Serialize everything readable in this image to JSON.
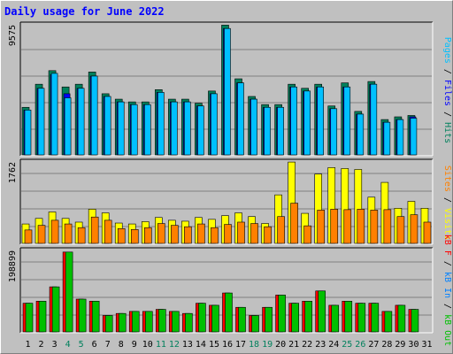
{
  "title": "Daily usage for June 2022",
  "colors": {
    "hits": "#00805c",
    "files": "#0000ff",
    "pages": "#00c0ff",
    "visits": "#ffff00",
    "sites": "#ff8000",
    "kb_in": "#0080ff",
    "kb_out": "#00c000",
    "kb_f": "#ff0000",
    "weekend_label": "#00805c",
    "weekday_label": "#000000"
  },
  "legend": {
    "top": [
      {
        "key": "pages",
        "text": "Pages"
      },
      {
        "key": "sep",
        "text": " / "
      },
      {
        "key": "files",
        "text": "Files"
      },
      {
        "key": "sep",
        "text": " / "
      },
      {
        "key": "hits",
        "text": "Hits"
      }
    ],
    "middle": [
      {
        "key": "sites",
        "text": "Sites"
      },
      {
        "key": "sep",
        "text": " / "
      },
      {
        "key": "visits",
        "text": "Visits"
      }
    ],
    "bottom": [
      {
        "key": "kb_f",
        "text": "kB F"
      },
      {
        "key": "sep",
        "text": " / "
      },
      {
        "key": "kb_in",
        "text": "kB In"
      },
      {
        "key": "sep",
        "text": " / "
      },
      {
        "key": "kb_out",
        "text": "kB Out"
      }
    ]
  },
  "chart_data": [
    {
      "type": "bar",
      "panel": "top",
      "ymax_label": "9575",
      "ylim": [
        0,
        9575
      ],
      "grid": true,
      "categories": [
        "1",
        "2",
        "3",
        "4",
        "5",
        "6",
        "7",
        "8",
        "9",
        "10",
        "11",
        "12",
        "13",
        "14",
        "15",
        "16",
        "17",
        "18",
        "19",
        "20",
        "21",
        "22",
        "23",
        "24",
        "25",
        "26",
        "27",
        "28",
        "29",
        "30",
        "31"
      ],
      "series": [
        {
          "name": "Hits",
          "values": [
            3500,
            5200,
            6200,
            5000,
            5200,
            6100,
            4500,
            4100,
            3900,
            3900,
            4800,
            4100,
            4100,
            3800,
            4700,
            9550,
            5600,
            4300,
            3700,
            3700,
            5200,
            4900,
            5200,
            3600,
            5300,
            3200,
            5400,
            2600,
            2800,
            2900,
            0
          ]
        },
        {
          "name": "Files",
          "values": [
            3300,
            4900,
            5900,
            4500,
            4900,
            5800,
            4300,
            3900,
            3700,
            3700,
            4600,
            3900,
            3900,
            3600,
            4500,
            9300,
            5300,
            4100,
            3500,
            3500,
            5000,
            4700,
            5000,
            3400,
            5000,
            3000,
            5200,
            2400,
            2600,
            2800,
            0
          ]
        },
        {
          "name": "Pages",
          "values": [
            3300,
            4900,
            6000,
            4200,
            4900,
            5800,
            4300,
            3900,
            3700,
            3700,
            4600,
            3900,
            3900,
            3600,
            4500,
            9300,
            5300,
            4100,
            3500,
            3500,
            5000,
            4700,
            5000,
            3400,
            5000,
            3000,
            5200,
            2400,
            2600,
            2700,
            0
          ]
        }
      ]
    },
    {
      "type": "bar",
      "panel": "middle",
      "ymax_label": "1762",
      "ylim": [
        0,
        1762
      ],
      "grid": true,
      "categories": [
        "1",
        "2",
        "3",
        "4",
        "5",
        "6",
        "7",
        "8",
        "9",
        "10",
        "11",
        "12",
        "13",
        "14",
        "15",
        "16",
        "17",
        "18",
        "19",
        "20",
        "21",
        "22",
        "23",
        "24",
        "25",
        "26",
        "27",
        "28",
        "29",
        "30",
        "31"
      ],
      "series": [
        {
          "name": "Visits",
          "values": [
            420,
            540,
            680,
            540,
            460,
            740,
            660,
            440,
            420,
            470,
            560,
            500,
            480,
            560,
            520,
            600,
            660,
            580,
            430,
            1050,
            1760,
            650,
            1500,
            1640,
            1620,
            1600,
            1000,
            1320,
            760,
            910,
            760
          ]
        },
        {
          "name": "Sites",
          "values": [
            290,
            390,
            500,
            420,
            340,
            570,
            500,
            320,
            300,
            340,
            430,
            390,
            360,
            420,
            340,
            410,
            460,
            430,
            360,
            580,
            870,
            380,
            720,
            740,
            730,
            740,
            720,
            730,
            580,
            620,
            460
          ]
        }
      ]
    },
    {
      "type": "bar",
      "panel": "bottom",
      "ymax_label": "198899",
      "ylim": [
        0,
        198899
      ],
      "grid": true,
      "categories": [
        "1",
        "2",
        "3",
        "4",
        "5",
        "6",
        "7",
        "8",
        "9",
        "10",
        "11",
        "12",
        "13",
        "14",
        "15",
        "16",
        "17",
        "18",
        "19",
        "20",
        "21",
        "22",
        "23",
        "24",
        "25",
        "26",
        "27",
        "28",
        "29",
        "30",
        "31"
      ],
      "series": [
        {
          "name": "kB F",
          "values": [
            70000,
            75000,
            110000,
            195000,
            80000,
            75000,
            40000,
            45000,
            50000,
            50000,
            55000,
            50000,
            45000,
            70000,
            65000,
            95000,
            60000,
            40000,
            60000,
            90000,
            70000,
            75000,
            100000,
            65000,
            75000,
            70000,
            70000,
            50000,
            65000,
            55000,
            0
          ]
        },
        {
          "name": "kB In",
          "values": [
            0,
            0,
            0,
            0,
            0,
            0,
            0,
            0,
            0,
            0,
            0,
            0,
            0,
            0,
            0,
            0,
            0,
            0,
            0,
            0,
            0,
            0,
            0,
            0,
            0,
            0,
            0,
            0,
            0,
            0,
            0
          ]
        },
        {
          "name": "kB Out",
          "values": [
            70000,
            75000,
            110000,
            195000,
            80000,
            75000,
            40000,
            45000,
            50000,
            50000,
            55000,
            50000,
            45000,
            70000,
            65000,
            95000,
            60000,
            40000,
            60000,
            90000,
            70000,
            75000,
            100000,
            65000,
            75000,
            70000,
            70000,
            50000,
            65000,
            55000,
            0
          ]
        }
      ],
      "x_labels": {
        "weekend_days": [
          "4",
          "5",
          "11",
          "12",
          "18",
          "19",
          "25",
          "26"
        ]
      }
    }
  ]
}
